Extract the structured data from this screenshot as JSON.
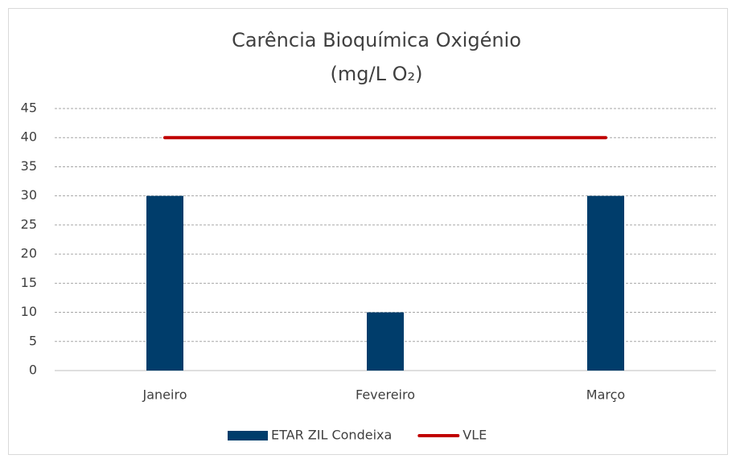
{
  "chart_data": {
    "type": "bar",
    "title": "Carência Bioquímica Oxigénio",
    "subtitle": "(mg/L O₂)",
    "categories": [
      "Janeiro",
      "Fevereiro",
      "Março"
    ],
    "series": [
      {
        "name": "ETAR ZIL Condeixa",
        "type": "bar",
        "color": "#003d6b",
        "values": [
          30,
          10,
          30
        ]
      },
      {
        "name": "VLE",
        "type": "line",
        "color": "#c00000",
        "values": [
          40,
          40,
          40
        ]
      }
    ],
    "ylim": [
      0,
      45
    ],
    "yticks": [
      0,
      5,
      10,
      15,
      20,
      25,
      30,
      35,
      40,
      45
    ],
    "grid": true,
    "legend": "bottom"
  }
}
